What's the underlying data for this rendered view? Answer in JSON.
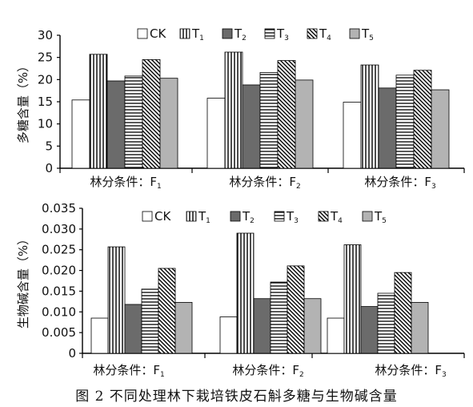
{
  "caption": "图 2   不同处理林下栽培铁皮石斛多糖与生物碱含量",
  "legend_items": [
    {
      "label": "CK",
      "sub": "",
      "pattern": "white"
    },
    {
      "label": "T",
      "sub": "1",
      "pattern": "vlines"
    },
    {
      "label": "T",
      "sub": "2",
      "pattern": "darkgray"
    },
    {
      "label": "T",
      "sub": "3",
      "pattern": "hlines"
    },
    {
      "label": "T",
      "sub": "4",
      "pattern": "diag"
    },
    {
      "label": "T",
      "sub": "5",
      "pattern": "lightgray"
    }
  ],
  "colors": {
    "dark_gray": "#6b6b6b",
    "light_gray": "#b3b3b3",
    "line": "#000000"
  },
  "chart_data": [
    {
      "type": "bar",
      "ylabel": "多糖含量（%）",
      "ylim": [
        0,
        30
      ],
      "yticks": [
        "0",
        "5",
        "10",
        "15",
        "20",
        "25",
        "30"
      ],
      "categories": [
        {
          "label": "林分条件：F",
          "sub": "1"
        },
        {
          "label": "林分条件：F",
          "sub": "2"
        },
        {
          "label": "林分条件：F",
          "sub": "3"
        }
      ],
      "series": [
        {
          "name": "CK",
          "values": [
            15.4,
            15.8,
            14.9
          ]
        },
        {
          "name": "T1",
          "values": [
            25.7,
            26.2,
            23.3
          ]
        },
        {
          "name": "T2",
          "values": [
            19.7,
            18.8,
            18.1
          ]
        },
        {
          "name": "T3",
          "values": [
            20.8,
            21.6,
            21.0
          ]
        },
        {
          "name": "T4",
          "values": [
            24.5,
            24.3,
            22.1
          ]
        },
        {
          "name": "T5",
          "values": [
            20.3,
            19.9,
            17.7
          ]
        }
      ],
      "legend": "top"
    },
    {
      "type": "bar",
      "ylabel": "生物碱含量（%）",
      "ylim": [
        0,
        0.035
      ],
      "yticks": [
        "0",
        "0.005",
        "0.010",
        "0.015",
        "0.020",
        "0.025",
        "0.030",
        "0.035"
      ],
      "categories": [
        {
          "label": "林分条件：F",
          "sub": "1"
        },
        {
          "label": "林分条件：F",
          "sub": "2"
        },
        {
          "label": "林分条件：F",
          "sub": "3"
        }
      ],
      "series": [
        {
          "name": "CK",
          "values": [
            0.0085,
            0.0088,
            0.0085
          ]
        },
        {
          "name": "T1",
          "values": [
            0.0257,
            0.029,
            0.0262
          ]
        },
        {
          "name": "T2",
          "values": [
            0.0118,
            0.0132,
            0.0113
          ]
        },
        {
          "name": "T3",
          "values": [
            0.0155,
            0.0172,
            0.0145
          ]
        },
        {
          "name": "T4",
          "values": [
            0.0205,
            0.0211,
            0.0195
          ]
        },
        {
          "name": "T5",
          "values": [
            0.0123,
            0.0132,
            0.0123
          ]
        }
      ],
      "legend": "top"
    }
  ]
}
